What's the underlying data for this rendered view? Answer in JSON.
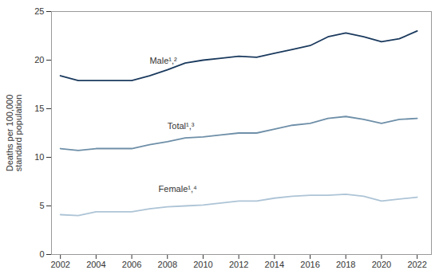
{
  "chart_data": {
    "type": "line",
    "ylabel": "Deaths per 100,000\nstandard population",
    "x": [
      2002,
      2003,
      2004,
      2005,
      2006,
      2007,
      2008,
      2009,
      2010,
      2011,
      2012,
      2013,
      2014,
      2015,
      2016,
      2017,
      2018,
      2019,
      2020,
      2021,
      2022
    ],
    "series": [
      {
        "name": "Male¹,²",
        "color": "#1b3a5e",
        "values": [
          18.4,
          17.9,
          17.9,
          17.9,
          17.9,
          18.4,
          19.0,
          19.7,
          20.0,
          20.2,
          20.4,
          20.3,
          20.7,
          21.1,
          21.5,
          22.4,
          22.8,
          22.4,
          21.9,
          22.2,
          23.0
        ]
      },
      {
        "name": "Total¹,³",
        "color": "#6e8fa8",
        "values": [
          10.9,
          10.7,
          10.9,
          10.9,
          10.9,
          11.3,
          11.6,
          12.0,
          12.1,
          12.3,
          12.5,
          12.5,
          12.9,
          13.3,
          13.5,
          14.0,
          14.2,
          13.9,
          13.5,
          13.9,
          14.0
        ]
      },
      {
        "name": "Female¹,⁴",
        "color": "#adc4d6",
        "values": [
          4.1,
          4.0,
          4.4,
          4.4,
          4.4,
          4.7,
          4.9,
          5.0,
          5.1,
          5.3,
          5.5,
          5.5,
          5.8,
          6.0,
          6.1,
          6.1,
          6.2,
          6.0,
          5.5,
          5.7,
          5.9
        ]
      }
    ],
    "annotations": [
      {
        "text": "Male¹,²",
        "x": 2007.0,
        "y": 19.6
      },
      {
        "text": "Total¹,³",
        "x": 2008.0,
        "y": 12.9
      },
      {
        "text": "Female¹,⁴",
        "x": 2007.5,
        "y": 6.45
      }
    ],
    "xlim": [
      2001.5,
      2022.8
    ],
    "xticks": [
      2002,
      2004,
      2006,
      2008,
      2010,
      2012,
      2014,
      2016,
      2018,
      2020,
      2022
    ],
    "ylim": [
      0,
      25
    ],
    "yticks": [
      0,
      5,
      10,
      15,
      20,
      25
    ],
    "grid": false
  }
}
